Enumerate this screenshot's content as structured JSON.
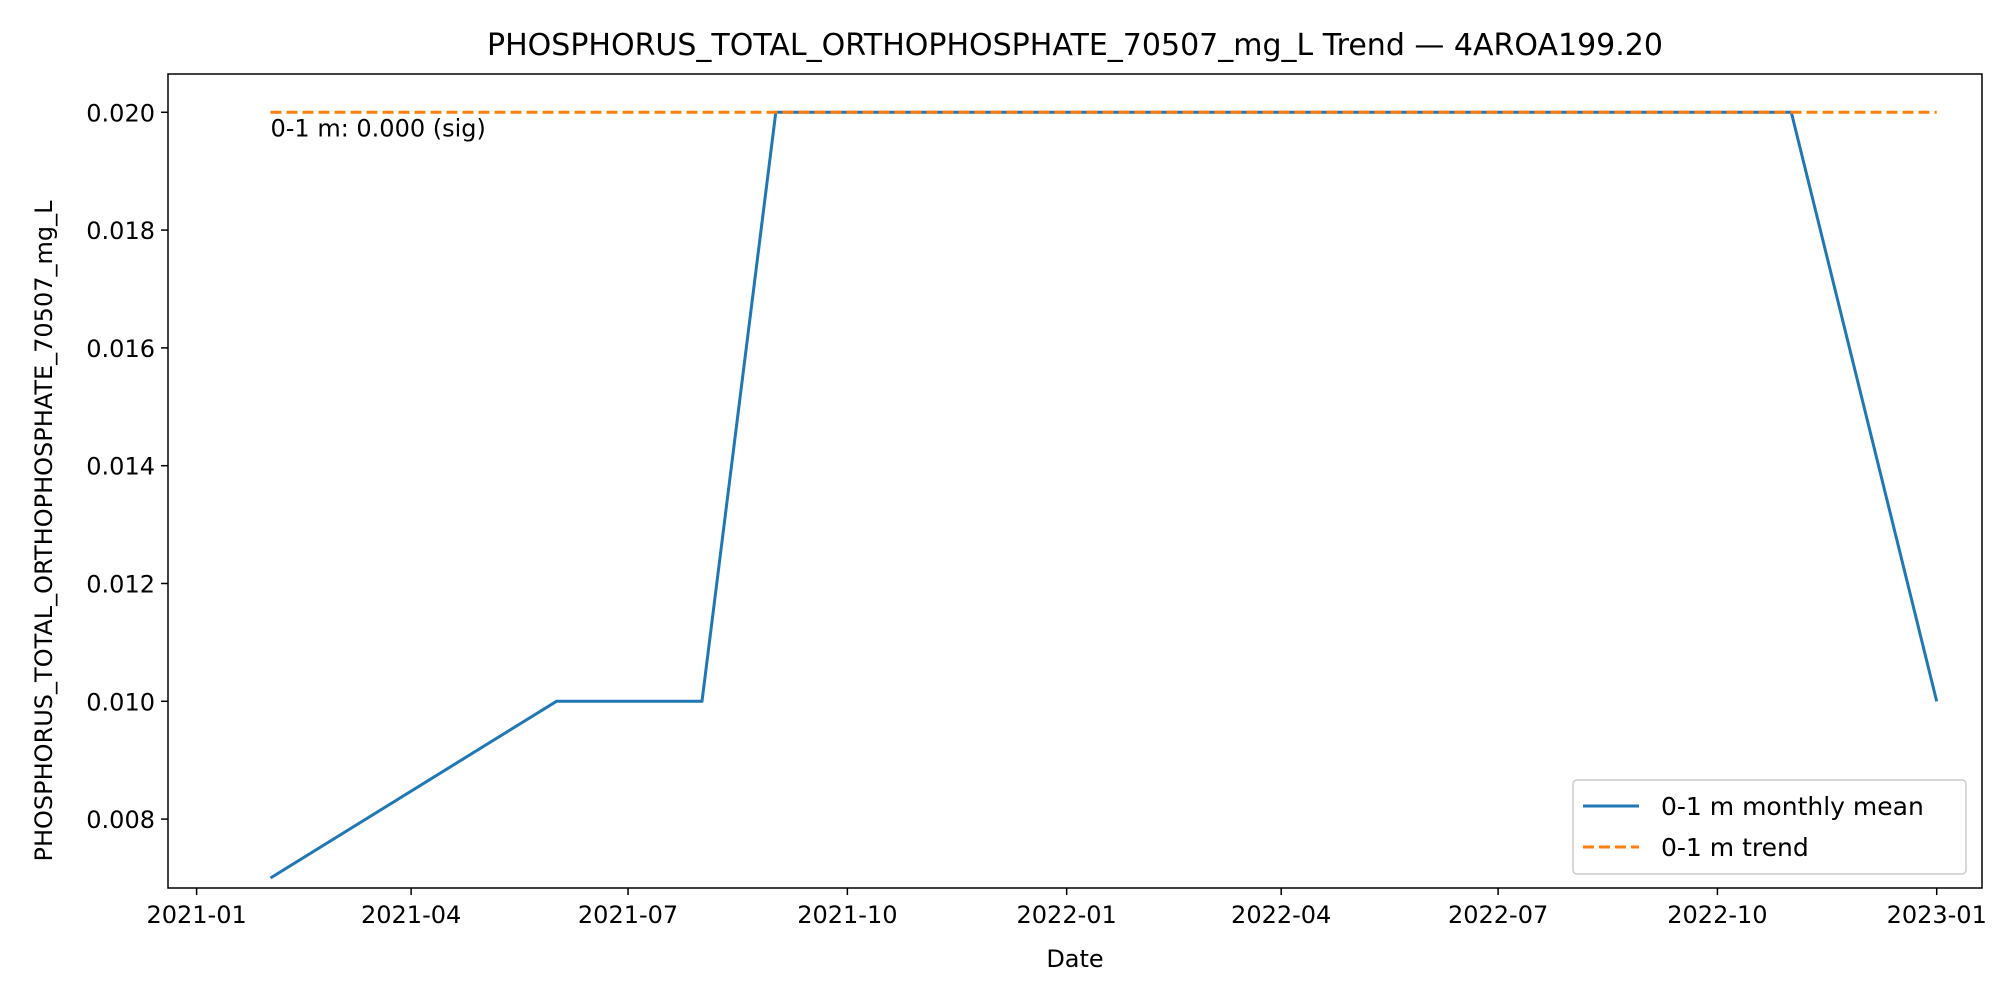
{
  "chart_data": {
    "type": "line",
    "title": "PHOSPHORUS_TOTAL_ORTHOPHOSPHATE_70507_mg_L Trend — 4AROA199.20",
    "xlabel": "Date",
    "ylabel": "PHOSPHORUS_TOTAL_ORTHOPHOSPHATE_70507_mg_L",
    "xlim": [
      "2020-12-20",
      "2023-01-20"
    ],
    "ylim": [
      0.00683,
      0.02065
    ],
    "x_ticks": [
      "2021-01-01",
      "2021-04-01",
      "2021-07-01",
      "2021-10-01",
      "2022-01-01",
      "2022-04-01",
      "2022-07-01",
      "2022-10-01",
      "2023-01-01"
    ],
    "x_tick_labels": [
      "2021-01",
      "2021-04",
      "2021-07",
      "2021-10",
      "2022-01",
      "2022-04",
      "2022-07",
      "2022-10",
      "2023-01"
    ],
    "y_ticks": [
      0.008,
      0.01,
      0.012,
      0.014,
      0.016,
      0.018,
      0.02
    ],
    "y_tick_labels": [
      "0.008",
      "0.010",
      "0.012",
      "0.014",
      "0.016",
      "0.018",
      "0.020"
    ],
    "grid": false,
    "legend_position": "bottom-right",
    "series": [
      {
        "name": "0-1 m monthly mean",
        "color": "#1f77b4",
        "style": "solid",
        "x": [
          "2021-02-01",
          "2021-06-01",
          "2021-08-01",
          "2021-09-01",
          "2022-11-01",
          "2023-01-01"
        ],
        "values": [
          0.007,
          0.01,
          0.01,
          0.02,
          0.02,
          0.01
        ]
      },
      {
        "name": "0-1 m trend",
        "color": "#ff7f0e",
        "style": "dashed",
        "x": [
          "2021-02-01",
          "2023-01-01"
        ],
        "values": [
          0.02,
          0.02
        ]
      }
    ],
    "annotations": [
      {
        "text": "0-1 m: 0.000 (sig)",
        "x": "2021-02-01",
        "y": 0.02
      }
    ]
  }
}
